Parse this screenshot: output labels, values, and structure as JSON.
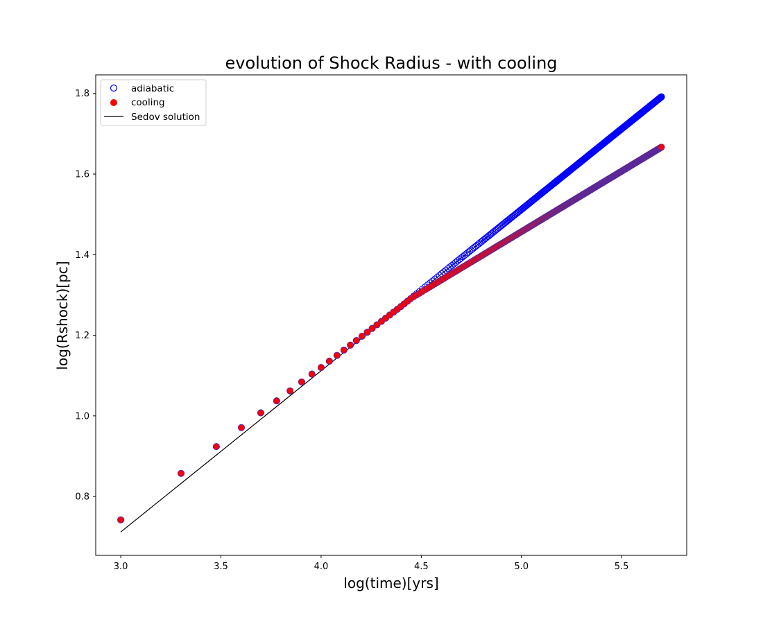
{
  "chart_data": {
    "type": "scatter",
    "title": "evolution of Shock Radius - with cooling",
    "xlabel": "log(time)[yrs]",
    "ylabel": "log(Rshock)[pc]",
    "xlim": [
      2.875,
      5.825
    ],
    "ylim": [
      0.654,
      1.846
    ],
    "xticks": [
      3.0,
      3.5,
      4.0,
      4.5,
      5.0,
      5.5
    ],
    "xtick_labels": [
      "3.0",
      "3.5",
      "4.0",
      "4.5",
      "5.0",
      "5.5"
    ],
    "yticks": [
      0.8,
      1.0,
      1.2,
      1.4,
      1.6,
      1.8
    ],
    "ytick_labels": [
      "0.8",
      "1.0",
      "1.2",
      "1.4",
      "1.6",
      "1.8"
    ],
    "grid": false,
    "legend_position": "top-left",
    "legend": [
      "adiabatic",
      "cooling",
      "Sedov solution"
    ],
    "series": [
      {
        "name": "adiabatic",
        "style": "open-circle",
        "color": "#0000ff",
        "description": "time steps t = 1000 yrs to 500000 yrs in steps of 1000 yrs",
        "t_start": 1000,
        "t_step": 1000,
        "t_end": 500000,
        "model": "sedov_plus_offset",
        "sedov_coefficient": 0.4,
        "sedov_exponent": 0.4,
        "early_offset": [
          [
            3.0,
            0.03
          ],
          [
            3.301,
            0.025
          ],
          [
            3.477,
            0.021
          ],
          [
            3.602,
            0.018
          ],
          [
            3.699,
            0.016
          ],
          [
            3.778,
            0.014
          ],
          [
            3.845,
            0.012
          ],
          [
            3.903,
            0.011
          ],
          [
            3.954,
            0.01
          ],
          [
            4.0,
            0.008
          ],
          [
            4.2,
            0.004
          ],
          [
            4.4,
            0.0
          ],
          [
            5.7,
            0.0
          ]
        ],
        "y_at_end": 1.79
      },
      {
        "name": "cooling",
        "style": "filled-circle",
        "color": "#ff0000",
        "edge_color": "#5a2a9a",
        "description": "same time steps; follows adiabatic until log t ~ 4.45, then slope 0.3",
        "break_log_t": 4.45,
        "late_slope": 0.3,
        "y_at_end": 1.68
      },
      {
        "name": "Sedov solution",
        "style": "line",
        "color": "#000000",
        "x": [
          3.0,
          5.7
        ],
        "y": [
          0.712,
          1.792
        ]
      }
    ]
  }
}
